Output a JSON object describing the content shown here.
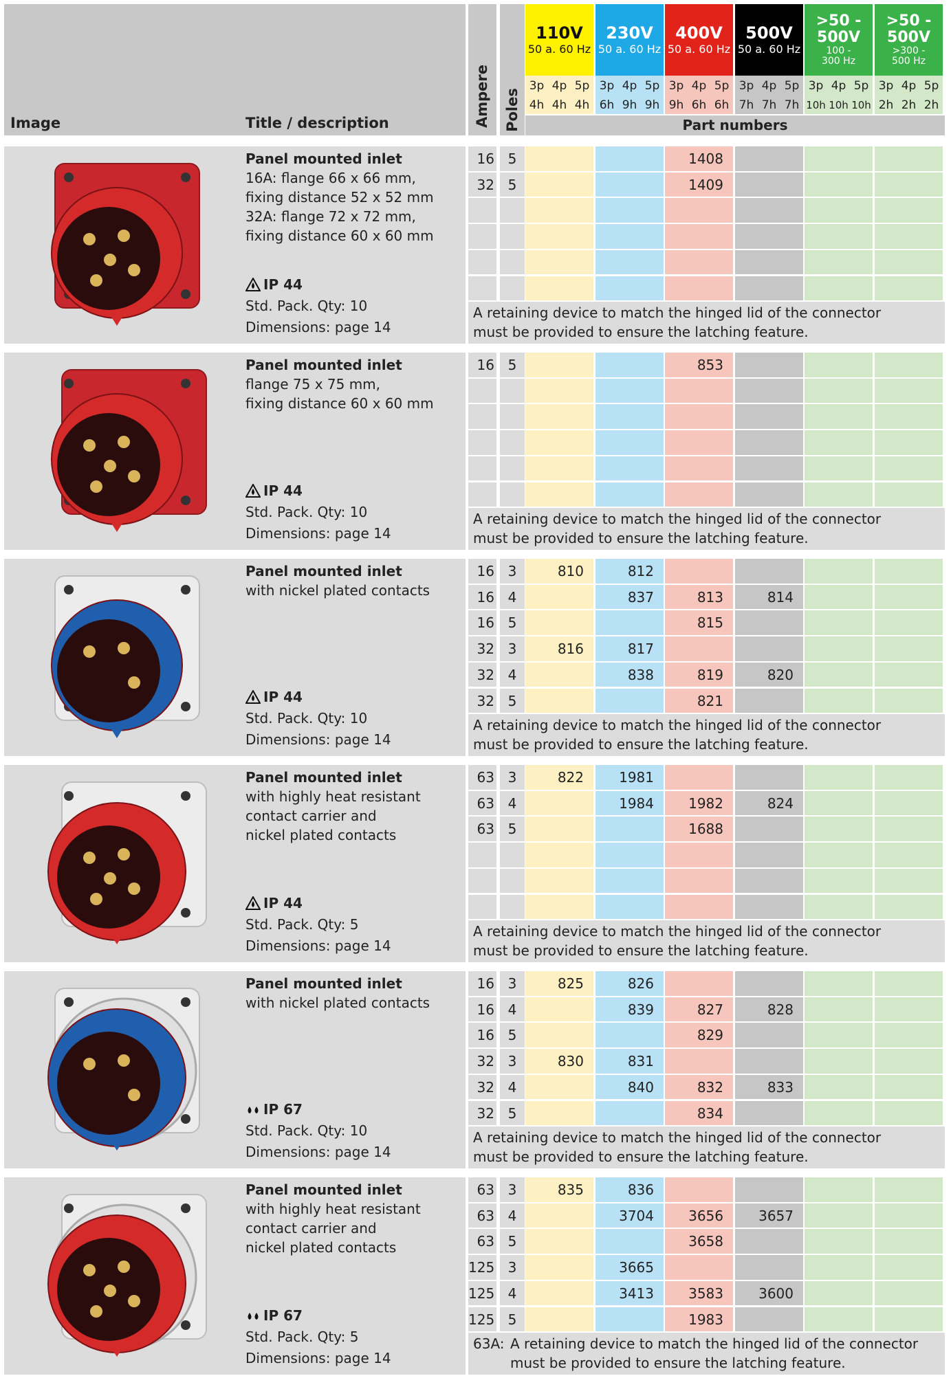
{
  "header": {
    "image": "Image",
    "title": "Title / description",
    "ampere": "Ampere",
    "poles": "Poles",
    "part_numbers": "Part numbers",
    "columns": [
      {
        "voltage": "110V",
        "freq": "50 a. 60 Hz",
        "phases": [
          "3p",
          "4p",
          "5p"
        ],
        "hours": [
          "4h",
          "4h",
          "4h"
        ]
      },
      {
        "voltage": "230V",
        "freq": "50 a. 60 Hz",
        "phases": [
          "3p",
          "4p",
          "5p"
        ],
        "hours": [
          "6h",
          "9h",
          "9h"
        ]
      },
      {
        "voltage": "400V",
        "freq": "50 a. 60 Hz",
        "phases": [
          "3p",
          "4p",
          "5p"
        ],
        "hours": [
          "9h",
          "6h",
          "6h"
        ]
      },
      {
        "voltage": "500V",
        "freq": "50 a. 60 Hz",
        "phases": [
          "3p",
          "4p",
          "5p"
        ],
        "hours": [
          "7h",
          "7h",
          "7h"
        ]
      },
      {
        "voltage": ">50 - 500V",
        "freq": "100 - 300 Hz",
        "phases": [
          "3p",
          "4p",
          "5p"
        ],
        "hours": [
          "10h",
          "10h",
          "10h"
        ]
      },
      {
        "voltage": ">50 - 500V",
        "freq": ">300 - 500 Hz",
        "phases": [
          "3p",
          "4p",
          "5p"
        ],
        "hours": [
          "2h",
          "2h",
          "2h"
        ]
      }
    ]
  },
  "sections": [
    {
      "title": "Panel mounted inlet",
      "description": [
        "16A: flange 66 x 66 mm,",
        "fixing distance 52 x 52 mm",
        "32A: flange 72 x 72 mm,",
        "fixing distance 60 x 60 mm"
      ],
      "ip": "IP 44",
      "pack": "Std. Pack. Qty: 10",
      "dimensions": "Dimensions: page 14",
      "rows": [
        {
          "ampere": 16,
          "poles": 5,
          "parts": [
            null,
            null,
            1408,
            null,
            null,
            null
          ]
        },
        {
          "ampere": 32,
          "poles": 5,
          "parts": [
            null,
            null,
            1409,
            null,
            null,
            null
          ]
        }
      ],
      "note": [
        "A retaining device to match the hinged lid of the connector",
        "must be provided to ensure the latching feature."
      ]
    },
    {
      "title": "Panel mounted inlet",
      "description": [
        "flange 75 x 75 mm,",
        "fixing distance 60 x 60 mm"
      ],
      "ip": "IP 44",
      "pack": "Std. Pack. Qty: 10",
      "dimensions": "Dimensions: page 14",
      "rows": [
        {
          "ampere": 16,
          "poles": 5,
          "parts": [
            null,
            null,
            853,
            null,
            null,
            null
          ]
        }
      ],
      "note": [
        "A retaining device to match the hinged lid of the connector",
        "must be provided to ensure the latching feature."
      ]
    },
    {
      "title": "Panel mounted inlet",
      "description": [
        "with nickel plated contacts"
      ],
      "ip": "IP 44",
      "pack": "Std. Pack. Qty: 10",
      "dimensions": "Dimensions: page 14",
      "rows": [
        {
          "ampere": 16,
          "poles": 3,
          "parts": [
            810,
            812,
            null,
            null,
            null,
            null
          ]
        },
        {
          "ampere": 16,
          "poles": 4,
          "parts": [
            null,
            837,
            813,
            814,
            null,
            null
          ]
        },
        {
          "ampere": 16,
          "poles": 5,
          "parts": [
            null,
            null,
            815,
            null,
            null,
            null
          ]
        },
        {
          "ampere": 32,
          "poles": 3,
          "parts": [
            816,
            817,
            null,
            null,
            null,
            null
          ]
        },
        {
          "ampere": 32,
          "poles": 4,
          "parts": [
            null,
            838,
            819,
            820,
            null,
            null
          ]
        },
        {
          "ampere": 32,
          "poles": 5,
          "parts": [
            null,
            null,
            821,
            null,
            null,
            null
          ]
        }
      ],
      "note": [
        "A retaining device to match the hinged lid of the connector",
        "must be provided to ensure the latching feature."
      ]
    },
    {
      "title": "Panel mounted inlet",
      "description": [
        "with highly heat resistant",
        "contact carrier and",
        "nickel plated contacts"
      ],
      "ip": "IP 44",
      "pack": "Std. Pack. Qty: 5",
      "dimensions": "Dimensions: page 14",
      "rows": [
        {
          "ampere": 63,
          "poles": 3,
          "parts": [
            822,
            1981,
            null,
            null,
            null,
            null
          ]
        },
        {
          "ampere": 63,
          "poles": 4,
          "parts": [
            null,
            1984,
            1982,
            824,
            null,
            null
          ]
        },
        {
          "ampere": 63,
          "poles": 5,
          "parts": [
            null,
            null,
            1688,
            null,
            null,
            null
          ]
        }
      ],
      "note": [
        "A retaining device to match the hinged lid of the connector",
        "must be provided to ensure the latching feature."
      ]
    },
    {
      "title": "Panel mounted inlet",
      "description": [
        "with nickel plated contacts"
      ],
      "ip": "IP 67",
      "pack": "Std. Pack. Qty: 10",
      "dimensions": "Dimensions: page 14",
      "rows": [
        {
          "ampere": 16,
          "poles": 3,
          "parts": [
            825,
            826,
            null,
            null,
            null,
            null
          ]
        },
        {
          "ampere": 16,
          "poles": 4,
          "parts": [
            null,
            839,
            827,
            828,
            null,
            null
          ]
        },
        {
          "ampere": 16,
          "poles": 5,
          "parts": [
            null,
            null,
            829,
            null,
            null,
            null
          ]
        },
        {
          "ampere": 32,
          "poles": 3,
          "parts": [
            830,
            831,
            null,
            null,
            null,
            null
          ]
        },
        {
          "ampere": 32,
          "poles": 4,
          "parts": [
            null,
            840,
            832,
            833,
            null,
            null
          ]
        },
        {
          "ampere": 32,
          "poles": 5,
          "parts": [
            null,
            null,
            834,
            null,
            null,
            null
          ]
        }
      ],
      "note": [
        "A retaining device to match the hinged lid of the connector",
        "must be provided to ensure the latching feature."
      ]
    },
    {
      "title": "Panel mounted inlet",
      "description": [
        "with highly heat resistant",
        "contact carrier and",
        "nickel plated contacts"
      ],
      "ip": "IP 67",
      "pack": "Std. Pack. Qty: 5",
      "dimensions": "Dimensions: page 14",
      "rows": [
        {
          "ampere": 63,
          "poles": 3,
          "parts": [
            835,
            836,
            null,
            null,
            null,
            null
          ]
        },
        {
          "ampere": 63,
          "poles": 4,
          "parts": [
            null,
            3704,
            3656,
            3657,
            null,
            null
          ]
        },
        {
          "ampere": 63,
          "poles": 5,
          "parts": [
            null,
            null,
            3658,
            null,
            null,
            null
          ]
        },
        {
          "ampere": 125,
          "poles": 3,
          "parts": [
            null,
            3665,
            null,
            null,
            null,
            null
          ]
        },
        {
          "ampere": 125,
          "poles": 4,
          "parts": [
            null,
            3413,
            3583,
            3600,
            null,
            null
          ]
        },
        {
          "ampere": 125,
          "poles": 5,
          "parts": [
            null,
            null,
            1983,
            null,
            null,
            null
          ]
        }
      ],
      "note_prefix": "63A:",
      "note": [
        "A retaining device to match the hinged lid of the connector",
        "must be provided to ensure the latching feature."
      ]
    }
  ]
}
